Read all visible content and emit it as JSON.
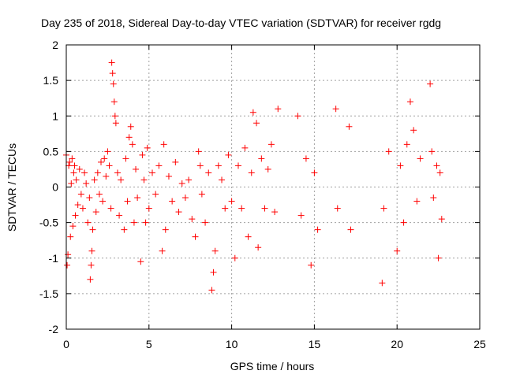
{
  "chart_data": {
    "type": "scatter",
    "title": "Day 235 of 2018, Sidereal Day-to-day VTEC variation (SDTVAR) for receiver rgdg",
    "xlabel": "GPS time / hours",
    "ylabel": "SDTVAR / TECUs",
    "xlim": [
      0,
      25
    ],
    "ylim": [
      -2,
      2
    ],
    "xticks": [
      0,
      5,
      10,
      15,
      20,
      25
    ],
    "yticks": [
      -2,
      -1.5,
      -1,
      -0.5,
      0,
      0.5,
      1,
      1.5,
      2
    ],
    "xtick_labels": [
      "0",
      "5",
      "10",
      "15",
      "20",
      "25"
    ],
    "ytick_labels": [
      "-2",
      "-1.5",
      "-1",
      "-0.5",
      "0",
      "0.5",
      "1",
      "1.5",
      "2"
    ],
    "grid": true,
    "marker": "+",
    "color": "#ff0000",
    "series": [
      {
        "name": "SDTVAR",
        "points": [
          [
            0.0,
            0.45
          ],
          [
            0.05,
            -1.1
          ],
          [
            0.1,
            -0.95
          ],
          [
            0.15,
            0.3
          ],
          [
            0.2,
            0.35
          ],
          [
            0.25,
            -0.7
          ],
          [
            0.3,
            0.05
          ],
          [
            0.35,
            0.4
          ],
          [
            0.4,
            -0.55
          ],
          [
            0.45,
            0.2
          ],
          [
            0.5,
            0.3
          ],
          [
            0.55,
            -0.4
          ],
          [
            0.6,
            0.1
          ],
          [
            0.7,
            -0.25
          ],
          [
            0.8,
            0.25
          ],
          [
            0.9,
            -0.1
          ],
          [
            1.0,
            -0.3
          ],
          [
            1.1,
            0.2
          ],
          [
            1.2,
            0.05
          ],
          [
            1.3,
            -0.5
          ],
          [
            1.4,
            -0.15
          ],
          [
            1.45,
            -1.3
          ],
          [
            1.5,
            -1.1
          ],
          [
            1.55,
            -0.9
          ],
          [
            1.6,
            -0.6
          ],
          [
            1.7,
            0.1
          ],
          [
            1.8,
            -0.35
          ],
          [
            1.9,
            0.2
          ],
          [
            2.0,
            -0.1
          ],
          [
            2.1,
            0.35
          ],
          [
            2.2,
            -0.2
          ],
          [
            2.3,
            0.4
          ],
          [
            2.4,
            0.15
          ],
          [
            2.5,
            0.5
          ],
          [
            2.6,
            0.3
          ],
          [
            2.7,
            -0.3
          ],
          [
            2.75,
            1.75
          ],
          [
            2.8,
            1.6
          ],
          [
            2.85,
            1.45
          ],
          [
            2.9,
            1.2
          ],
          [
            2.95,
            1.0
          ],
          [
            3.0,
            0.9
          ],
          [
            3.1,
            0.2
          ],
          [
            3.2,
            -0.4
          ],
          [
            3.3,
            0.1
          ],
          [
            3.5,
            -0.6
          ],
          [
            3.6,
            0.4
          ],
          [
            3.7,
            -0.2
          ],
          [
            3.8,
            0.7
          ],
          [
            3.9,
            0.85
          ],
          [
            4.0,
            0.6
          ],
          [
            4.1,
            -0.5
          ],
          [
            4.2,
            0.25
          ],
          [
            4.3,
            -0.15
          ],
          [
            4.5,
            -1.05
          ],
          [
            4.6,
            0.45
          ],
          [
            4.7,
            0.1
          ],
          [
            4.8,
            -0.5
          ],
          [
            4.9,
            0.55
          ],
          [
            5.0,
            -0.3
          ],
          [
            5.2,
            0.2
          ],
          [
            5.4,
            -0.1
          ],
          [
            5.6,
            0.3
          ],
          [
            5.8,
            -0.9
          ],
          [
            5.9,
            0.6
          ],
          [
            6.0,
            -0.6
          ],
          [
            6.2,
            0.15
          ],
          [
            6.4,
            -0.2
          ],
          [
            6.6,
            0.35
          ],
          [
            6.8,
            -0.35
          ],
          [
            7.0,
            0.05
          ],
          [
            7.2,
            -0.15
          ],
          [
            7.4,
            0.1
          ],
          [
            7.6,
            -0.45
          ],
          [
            7.8,
            -0.7
          ],
          [
            8.0,
            0.5
          ],
          [
            8.1,
            0.3
          ],
          [
            8.2,
            -0.1
          ],
          [
            8.4,
            -0.5
          ],
          [
            8.6,
            0.2
          ],
          [
            8.8,
            -1.45
          ],
          [
            8.9,
            -1.2
          ],
          [
            9.0,
            -0.9
          ],
          [
            9.2,
            0.3
          ],
          [
            9.4,
            0.1
          ],
          [
            9.6,
            -0.3
          ],
          [
            9.8,
            0.45
          ],
          [
            10.0,
            -0.2
          ],
          [
            10.2,
            -1.0
          ],
          [
            10.4,
            0.3
          ],
          [
            10.6,
            -0.3
          ],
          [
            10.8,
            0.55
          ],
          [
            11.0,
            -0.7
          ],
          [
            11.2,
            0.2
          ],
          [
            11.3,
            1.05
          ],
          [
            11.5,
            0.9
          ],
          [
            11.6,
            -0.85
          ],
          [
            11.8,
            0.4
          ],
          [
            12.0,
            -0.3
          ],
          [
            12.2,
            0.25
          ],
          [
            12.4,
            0.6
          ],
          [
            12.6,
            -0.35
          ],
          [
            12.8,
            1.1
          ],
          [
            14.0,
            1.0
          ],
          [
            14.2,
            -0.4
          ],
          [
            14.5,
            0.4
          ],
          [
            14.8,
            -1.1
          ],
          [
            15.0,
            0.2
          ],
          [
            15.2,
            -0.6
          ],
          [
            16.3,
            1.1
          ],
          [
            16.4,
            -0.3
          ],
          [
            17.1,
            0.85
          ],
          [
            17.2,
            -0.6
          ],
          [
            19.1,
            -1.35
          ],
          [
            19.2,
            -0.3
          ],
          [
            19.5,
            0.5
          ],
          [
            20.0,
            -0.9
          ],
          [
            20.2,
            0.3
          ],
          [
            20.4,
            -0.5
          ],
          [
            20.6,
            0.6
          ],
          [
            20.8,
            1.2
          ],
          [
            21.0,
            0.8
          ],
          [
            21.2,
            -0.2
          ],
          [
            21.4,
            0.4
          ],
          [
            22.0,
            1.45
          ],
          [
            22.1,
            0.5
          ],
          [
            22.2,
            -0.15
          ],
          [
            22.4,
            0.3
          ],
          [
            22.5,
            -1.0
          ],
          [
            22.6,
            0.2
          ],
          [
            22.7,
            -0.45
          ]
        ]
      }
    ]
  }
}
